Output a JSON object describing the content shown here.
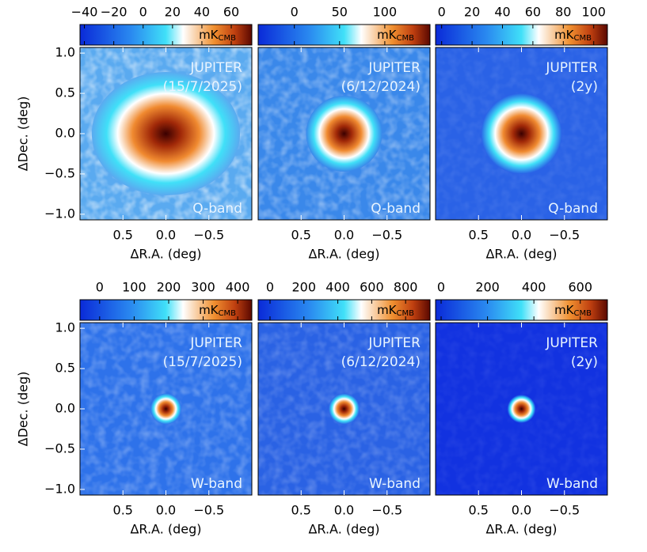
{
  "chart_data": [
    {
      "type": "heatmap",
      "title": "JUPITER",
      "subtitle": "(15/7/2025)",
      "annotation": "Q-band",
      "colorbar_label": "mK",
      "colorbar_label_sub": "CMB",
      "zlim": [
        -43,
        74
      ],
      "zticks": [
        {
          "value": -40,
          "label": "−40"
        },
        {
          "value": -20,
          "label": "−20"
        },
        0,
        20,
        40,
        60
      ],
      "xlabel": "ΔR.A. (deg)",
      "ylabel": "ΔDec. (deg)",
      "xlim": [
        1.0,
        -1.0
      ],
      "ylim": [
        -1.07,
        1.07
      ],
      "xticks": [
        0.5,
        {
          "value": 0,
          "label": "0.0"
        },
        {
          "value": -0.5,
          "label": "−0.5"
        }
      ],
      "yticks": [
        {
          "value": 1,
          "label": "1.0"
        },
        0.5,
        {
          "value": 0,
          "label": "0.0"
        },
        {
          "value": -0.5,
          "label": "−0.5"
        },
        {
          "value": -1,
          "label": "−1.0"
        }
      ]
    },
    {
      "type": "heatmap",
      "title": "JUPITER",
      "subtitle": "(6/12/2024)",
      "annotation": "Q-band",
      "colorbar_label": "mK",
      "colorbar_label_sub": "CMB",
      "zlim": [
        -40,
        150
      ],
      "zticks": [
        0,
        50,
        100
      ],
      "xlabel": "ΔR.A. (deg)",
      "xlim": [
        1.0,
        -1.0
      ],
      "ylim": [
        -1.07,
        1.07
      ],
      "xticks": [
        0.5,
        {
          "value": 0,
          "label": "0.0"
        },
        {
          "value": -0.5,
          "label": "−0.5"
        }
      ]
    },
    {
      "type": "heatmap",
      "title": "JUPITER",
      "subtitle": "(2y)",
      "annotation": "Q-band",
      "colorbar_label": "mK",
      "colorbar_label_sub": "CMB",
      "zlim": [
        -4,
        109
      ],
      "zticks": [
        0,
        20,
        40,
        60,
        80,
        100
      ],
      "xlabel": "ΔR.A. (deg)",
      "xlim": [
        1.0,
        -1.0
      ],
      "ylim": [
        -1.07,
        1.07
      ],
      "xticks": [
        0.5,
        {
          "value": 0,
          "label": "0.0"
        },
        {
          "value": -0.5,
          "label": "−0.5"
        }
      ]
    },
    {
      "type": "heatmap",
      "title": "JUPITER",
      "subtitle": "(15/7/2025)",
      "annotation": "W-band",
      "colorbar_label": "mK",
      "colorbar_label_sub": "CMB",
      "zlim": [
        -57,
        441
      ],
      "zticks": [
        0,
        100,
        200,
        300,
        400
      ],
      "xlabel": "ΔR.A. (deg)",
      "ylabel": "ΔDec. (deg)",
      "xlim": [
        1.0,
        -1.0
      ],
      "ylim": [
        -1.07,
        1.07
      ],
      "xticks": [
        0.5,
        {
          "value": 0,
          "label": "0.0"
        },
        {
          "value": -0.5,
          "label": "−0.5"
        }
      ],
      "yticks": [
        {
          "value": 1,
          "label": "1.0"
        },
        0.5,
        {
          "value": 0,
          "label": "0.0"
        },
        {
          "value": -0.5,
          "label": "−0.5"
        },
        {
          "value": -1,
          "label": "−1.0"
        }
      ]
    },
    {
      "type": "heatmap",
      "title": "JUPITER",
      "subtitle": "(6/12/2024)",
      "annotation": "W-band",
      "colorbar_label": "mK",
      "colorbar_label_sub": "CMB",
      "zlim": [
        -70,
        944
      ],
      "zticks": [
        0,
        200,
        400,
        600,
        800
      ],
      "xlabel": "ΔR.A. (deg)",
      "xlim": [
        1.0,
        -1.0
      ],
      "ylim": [
        -1.07,
        1.07
      ],
      "xticks": [
        0.5,
        {
          "value": 0,
          "label": "0.0"
        },
        {
          "value": -0.5,
          "label": "−0.5"
        }
      ]
    },
    {
      "type": "heatmap",
      "title": "JUPITER",
      "subtitle": "(2y)",
      "annotation": "W-band",
      "colorbar_label": "mK",
      "colorbar_label_sub": "CMB",
      "zlim": [
        -24,
        717
      ],
      "zticks": [
        0,
        200,
        400,
        600
      ],
      "xlabel": "ΔR.A. (deg)",
      "xlim": [
        1.0,
        -1.0
      ],
      "ylim": [
        -1.07,
        1.07
      ],
      "xticks": [
        0.5,
        {
          "value": 0,
          "label": "0.0"
        },
        {
          "value": -0.5,
          "label": "−0.5"
        }
      ]
    }
  ]
}
